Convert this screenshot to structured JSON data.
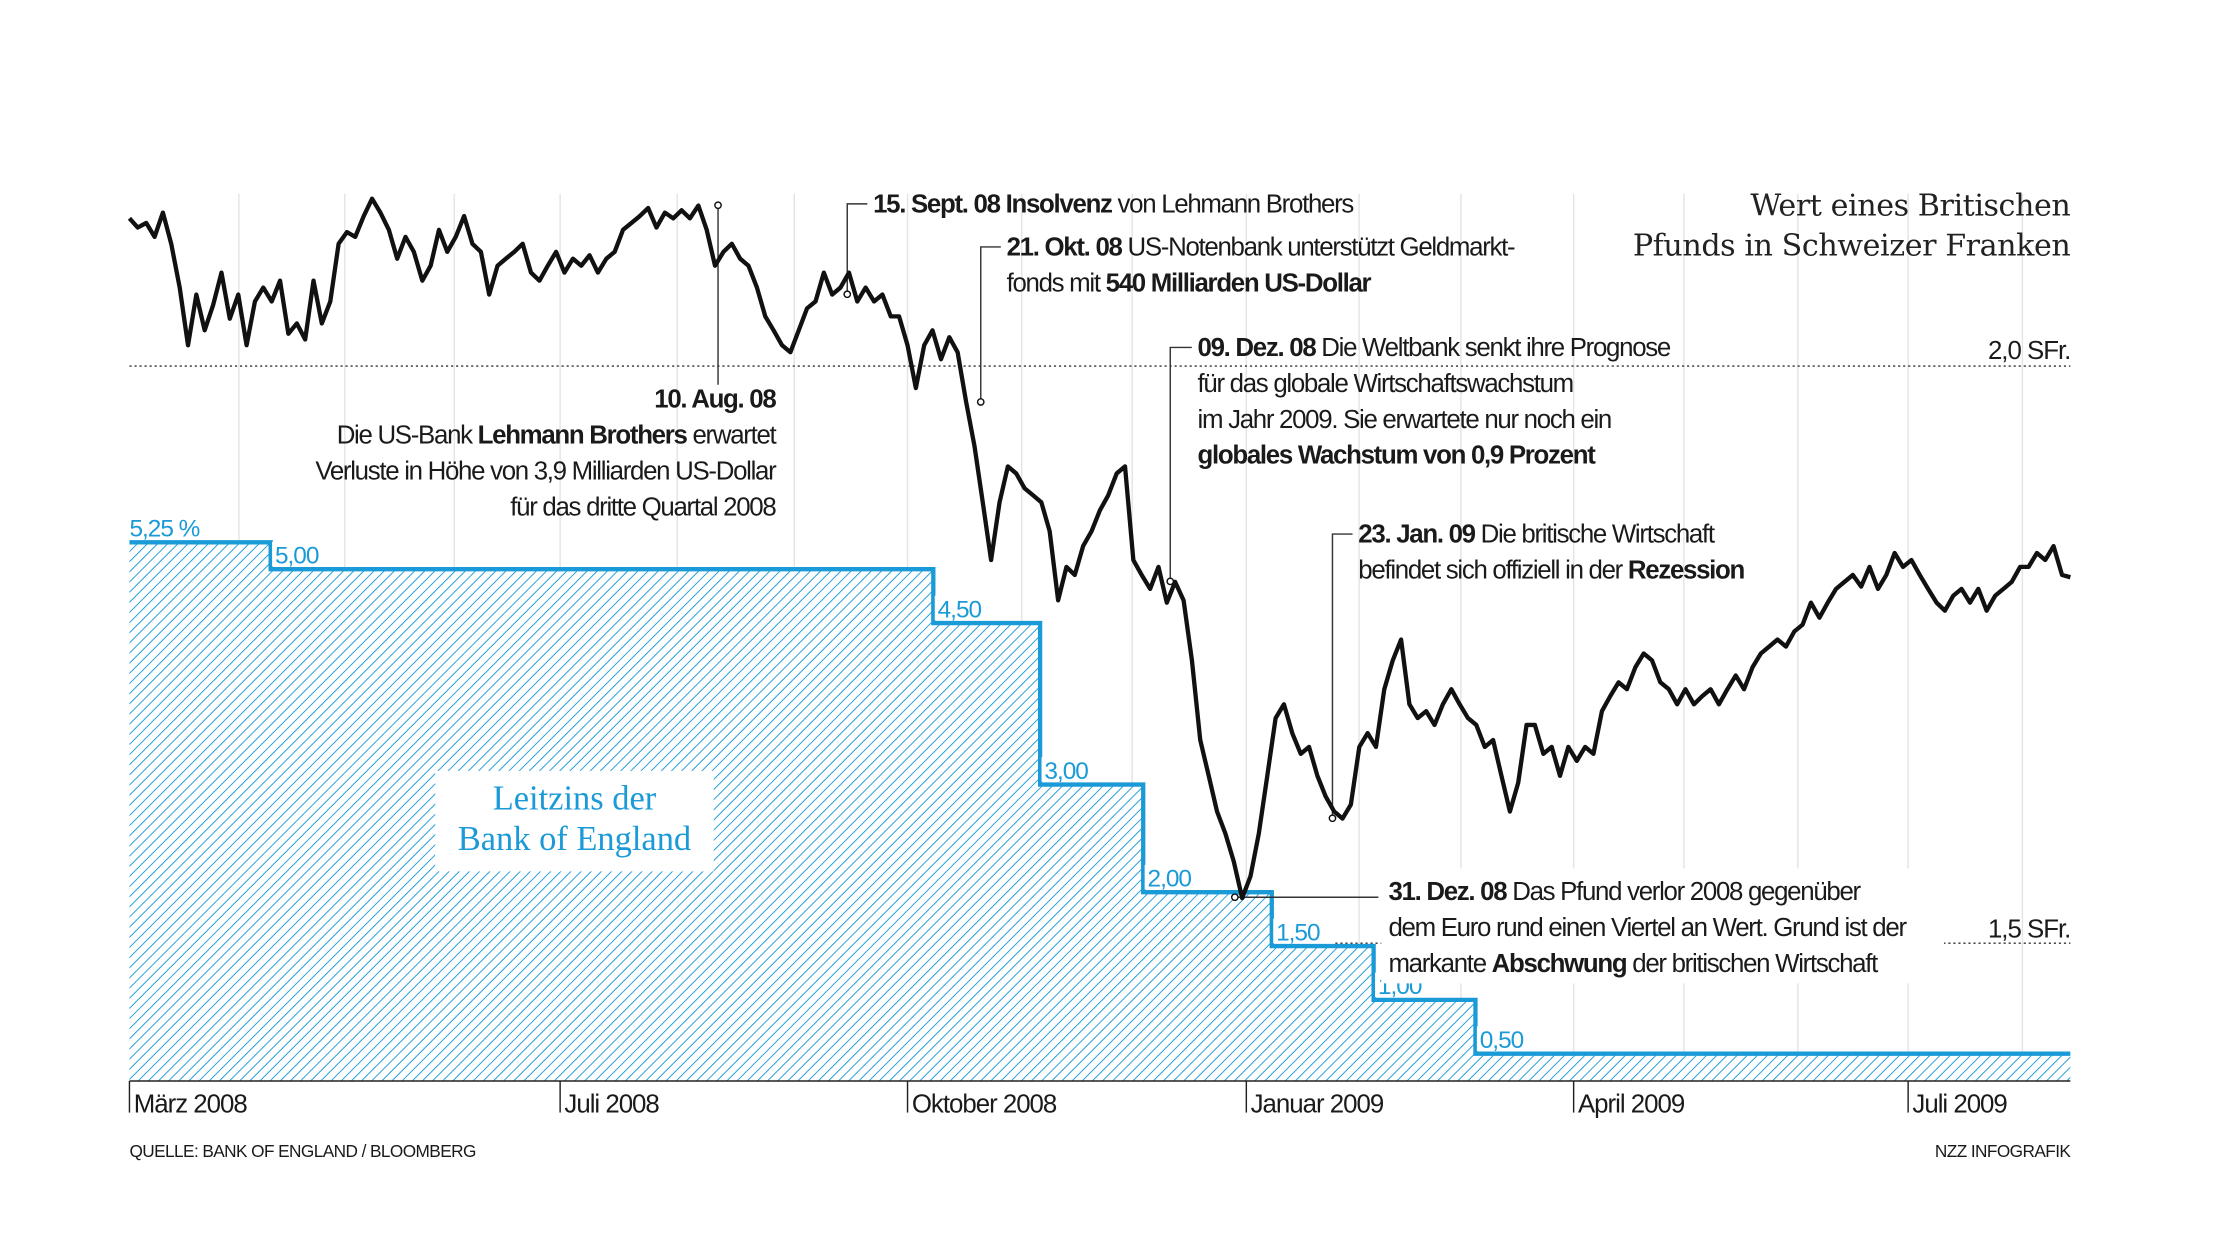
{
  "chart_data": {
    "type": "line",
    "title": "Wert eines Britischen Pfunds in Schweizer Franken",
    "title_lines": [
      "Wert eines Britischen",
      "Pfunds in Schweizer Franken"
    ],
    "x_range": [
      "2008-03-01",
      "2009-08-14"
    ],
    "x_ticks": [
      "März 2008",
      "Juli 2008",
      "Oktober 2008",
      "Januar 2009",
      "April 2009",
      "Juli 2009"
    ],
    "y_reference_lines": [
      {
        "value": 2.0,
        "label": "2,0 SFr."
      },
      {
        "value": 1.5,
        "label": "1,5 SFr."
      }
    ],
    "series": [
      {
        "name": "GBP in CHF",
        "color": "#111111",
        "sampling": "evenly spaced over x_range",
        "values": [
          2.128,
          2.12,
          2.124,
          2.112,
          2.133,
          2.106,
          2.068,
          2.018,
          2.062,
          2.031,
          2.053,
          2.081,
          2.041,
          2.062,
          2.018,
          2.056,
          2.068,
          2.056,
          2.074,
          2.028,
          2.037,
          2.023,
          2.074,
          2.037,
          2.056,
          2.106,
          2.116,
          2.112,
          2.13,
          2.145,
          2.133,
          2.118,
          2.093,
          2.112,
          2.099,
          2.074,
          2.087,
          2.118,
          2.099,
          2.112,
          2.13,
          2.106,
          2.099,
          2.062,
          2.087,
          2.093,
          2.099,
          2.106,
          2.081,
          2.074,
          2.087,
          2.099,
          2.081,
          2.093,
          2.087,
          2.096,
          2.081,
          2.093,
          2.099,
          2.118,
          2.124,
          2.13,
          2.137,
          2.12,
          2.133,
          2.128,
          2.135,
          2.128,
          2.139,
          2.118,
          2.087,
          2.099,
          2.106,
          2.093,
          2.087,
          2.068,
          2.043,
          2.031,
          2.018,
          2.012,
          2.031,
          2.05,
          2.056,
          2.081,
          2.062,
          2.068,
          2.081,
          2.056,
          2.068,
          2.056,
          2.062,
          2.043,
          2.043,
          2.018,
          1.981,
          2.018,
          2.031,
          2.006,
          2.025,
          2.012,
          1.969,
          1.931,
          1.882,
          1.832,
          1.882,
          1.913,
          1.907,
          1.894,
          1.888,
          1.882,
          1.857,
          1.797,
          1.826,
          1.819,
          1.844,
          1.857,
          1.875,
          1.888,
          1.907,
          1.913,
          1.832,
          1.819,
          1.807,
          1.826,
          1.795,
          1.813,
          1.797,
          1.745,
          1.676,
          1.645,
          1.614,
          1.595,
          1.571,
          1.539,
          1.558,
          1.595,
          1.645,
          1.695,
          1.707,
          1.682,
          1.664,
          1.67,
          1.645,
          1.627,
          1.614,
          1.608,
          1.62,
          1.67,
          1.682,
          1.67,
          1.72,
          1.745,
          1.763,
          1.707,
          1.695,
          1.701,
          1.689,
          1.707,
          1.72,
          1.707,
          1.695,
          1.689,
          1.67,
          1.676,
          1.645,
          1.614,
          1.639,
          1.689,
          1.689,
          1.664,
          1.67,
          1.645,
          1.67,
          1.658,
          1.67,
          1.664,
          1.701,
          1.714,
          1.726,
          1.72,
          1.739,
          1.751,
          1.745,
          1.726,
          1.72,
          1.707,
          1.72,
          1.707,
          1.714,
          1.72,
          1.707,
          1.72,
          1.732,
          1.72,
          1.739,
          1.751,
          1.757,
          1.763,
          1.757,
          1.77,
          1.776,
          1.795,
          1.782,
          1.795,
          1.807,
          1.813,
          1.819,
          1.809,
          1.826,
          1.807,
          1.819,
          1.838,
          1.826,
          1.832,
          1.819,
          1.807,
          1.795,
          1.788,
          1.801,
          1.807,
          1.795,
          1.807,
          1.788,
          1.801,
          1.807,
          1.813,
          1.826,
          1.826,
          1.838,
          1.832,
          1.844,
          1.819,
          1.817
        ]
      },
      {
        "name": "Leitzins der Bank of England",
        "color": "#1b9ad8",
        "type": "step-area",
        "label_lines": [
          "Leitzins der",
          "Bank of England"
        ],
        "steps": [
          {
            "from": "2008-03-01",
            "rate": 5.25,
            "label": "5,25 %"
          },
          {
            "from": "2008-04-10",
            "rate": 5.0,
            "label": "5,00"
          },
          {
            "from": "2008-10-08",
            "rate": 4.5,
            "label": "4,50"
          },
          {
            "from": "2008-11-06",
            "rate": 3.0,
            "label": "3,00"
          },
          {
            "from": "2008-12-04",
            "rate": 2.0,
            "label": "2,00"
          },
          {
            "from": "2009-01-08",
            "rate": 1.5,
            "label": "1,50"
          },
          {
            "from": "2009-02-05",
            "rate": 1.0,
            "label": "1,00"
          },
          {
            "from": "2009-03-05",
            "rate": 0.5,
            "label": "0,50"
          }
        ]
      }
    ],
    "annotations": [
      {
        "date": "2008-08-10",
        "bold": "10. Aug. 08",
        "lines": [
          [
            "Die US-Bank ",
            "Lehmann Brothers",
            " erwartet"
          ],
          [
            "Verluste in Höhe von 3,9 Milliarden US-Dollar"
          ],
          [
            "für das dritte Quartal 2008"
          ]
        ]
      },
      {
        "date": "2008-09-15",
        "bold": "15. Sept. 08",
        "lines": [
          [
            "",
            "Insolvenz",
            " von Lehmann Brothers"
          ]
        ]
      },
      {
        "date": "2008-10-21",
        "bold": "21. Okt. 08",
        "lines": [
          [
            "US-Notenbank unterstützt Geldmarkt-"
          ],
          [
            "fonds mit ",
            "540 Milliarden US-Dollar",
            ""
          ]
        ]
      },
      {
        "date": "2008-12-09",
        "bold": "09. Dez. 08",
        "lines": [
          [
            "Die Weltbank senkt ihre Prognose"
          ],
          [
            "für das globale Wirtschaftswachstum"
          ],
          [
            "im Jahr 2009. Sie erwartete nur noch ein"
          ],
          [
            "",
            "globales Wachstum von 0,9 Prozent",
            ""
          ]
        ]
      },
      {
        "date": "2009-01-23",
        "bold": "23. Jan. 09",
        "lines": [
          [
            "Die britische Wirtschaft"
          ],
          [
            "befindet sich offiziell in der ",
            "Rezession",
            ""
          ]
        ]
      },
      {
        "date": "2008-12-31",
        "bold": "31. Dez. 08",
        "lines": [
          [
            "Das Pfund verlor 2008 gegenüber"
          ],
          [
            "dem Euro rund einen Viertel an Wert. Grund ist der"
          ],
          [
            "markante ",
            "Abschwung",
            " der britischen Wirtschaft"
          ]
        ]
      }
    ]
  },
  "footer": {
    "source": "QUELLE: BANK OF ENGLAND / BLOOMBERG",
    "credit": "NZZ INFOGRAFIK"
  }
}
